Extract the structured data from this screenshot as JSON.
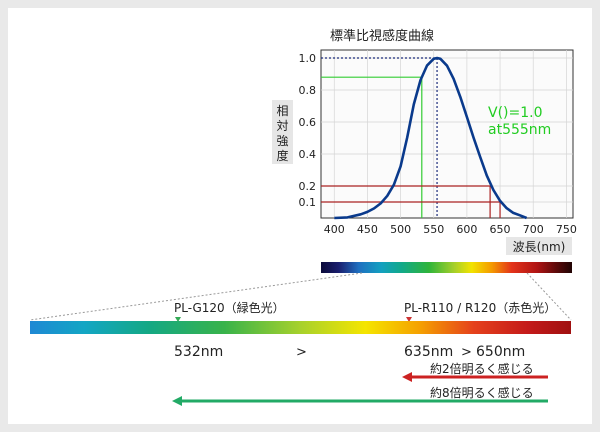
{
  "chart_data": {
    "type": "line",
    "title": "標準比視感度曲線",
    "xlabel": "波長(nm)",
    "ylabel": "相対強度",
    "xlim": [
      380,
      760
    ],
    "ylim": [
      0,
      1.05
    ],
    "x_ticks": [
      "400",
      "450",
      "500",
      "550",
      "600",
      "650",
      "700",
      "750"
    ],
    "y_ticks": [
      "0.1",
      "0.2",
      "0.4",
      "0.6",
      "0.8",
      "1.0"
    ],
    "grid": true,
    "series": [
      {
        "color": "#0a3a8c",
        "x": [
          400,
          420,
          440,
          450,
          460,
          470,
          480,
          490,
          500,
          510,
          520,
          530,
          540,
          550,
          555,
          560,
          570,
          580,
          590,
          600,
          610,
          620,
          630,
          640,
          650,
          660,
          670,
          680,
          690
        ],
        "y": [
          0.0,
          0.004,
          0.023,
          0.038,
          0.06,
          0.091,
          0.139,
          0.208,
          0.323,
          0.503,
          0.71,
          0.862,
          0.954,
          0.995,
          1.0,
          0.995,
          0.952,
          0.87,
          0.757,
          0.631,
          0.503,
          0.381,
          0.265,
          0.175,
          0.107,
          0.061,
          0.032,
          0.017,
          0.0
        ]
      }
    ],
    "annotation": {
      "line1": "V()=1.0",
      "line2": "at555nm",
      "color": "#22cc22"
    },
    "guides": [
      {
        "wavelength": 532,
        "intensity": 0.88,
        "color": "#33cc33"
      },
      {
        "wavelength": 555,
        "intensity": 1.0,
        "color": "#1a2a7a",
        "style": "dotted"
      },
      {
        "wavelength": 635,
        "intensity": 0.2,
        "color": "#aa2222"
      },
      {
        "wavelength": 650,
        "intensity": 0.1,
        "color": "#aa2222"
      }
    ]
  },
  "products": {
    "green": {
      "label": "PL-G120（緑色光）",
      "color": "#33aa55"
    },
    "red": {
      "label": "PL-R110 / R120（赤色光）",
      "color": "#cc3333"
    }
  },
  "wavelength_labels": {
    "green": "532nm",
    "red1": "635nm",
    "red2": "650nm",
    "separator": ">"
  },
  "arrows": {
    "red": {
      "text": "約2倍明るく感じる",
      "color": "#cc2222"
    },
    "green": {
      "text": "約8倍明るく感じる",
      "color": "#22aa66"
    }
  }
}
